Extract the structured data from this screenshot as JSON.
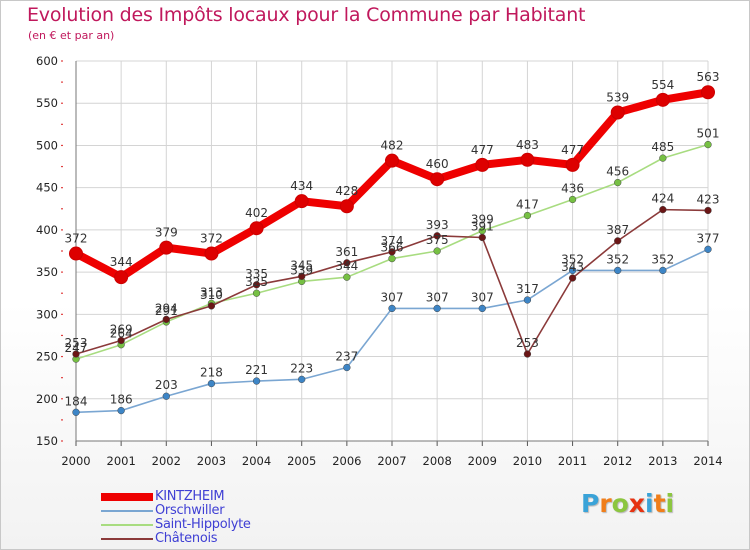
{
  "title": "Evolution des Impôts locaux pour la Commune par Habitant",
  "subtitle": "(en € et par an)",
  "logo": {
    "letters": [
      "P",
      "r",
      "o",
      "x",
      "i",
      "t",
      "i"
    ],
    "colors": [
      "#3aa3d8",
      "#f07e1a",
      "#8cc63f",
      "#e63312",
      "#3aa3d8",
      "#f07e1a",
      "#8cc63f"
    ]
  },
  "chart_data": {
    "type": "line",
    "title": "Evolution des Impôts locaux pour la Commune par Habitant",
    "subtitle": "(en € et par an)",
    "xlabel": "",
    "ylabel": "",
    "ylim": [
      150,
      600
    ],
    "yticks": [
      150,
      200,
      250,
      300,
      350,
      400,
      450,
      500,
      550,
      600
    ],
    "x": [
      "2000",
      "2001",
      "2002",
      "2003",
      "2004",
      "2005",
      "2006",
      "2007",
      "2008",
      "2009",
      "2010",
      "2011",
      "2012",
      "2013",
      "2014"
    ],
    "grid": true,
    "legend_position": "bottom-left",
    "series": [
      {
        "name": "KINTZHEIM",
        "color": "#ee0000",
        "point_color": "#dd0000",
        "style": "thick",
        "values": [
          372,
          344,
          379,
          372,
          402,
          434,
          428,
          482,
          460,
          477,
          483,
          477,
          539,
          554,
          563
        ]
      },
      {
        "name": "Orschwiller",
        "color": "#7aa6d2",
        "point_color": "#3d85c6",
        "style": "thin",
        "values": [
          184,
          186,
          203,
          218,
          221,
          223,
          237,
          307,
          307,
          307,
          317,
          352,
          352,
          352,
          377
        ]
      },
      {
        "name": "Saint-Hippolyte",
        "color": "#a8dc80",
        "point_color": "#76c043",
        "style": "thin",
        "values": [
          247,
          264,
          291,
          313,
          325,
          339,
          344,
          366,
          375,
          399,
          417,
          436,
          456,
          485,
          501
        ]
      },
      {
        "name": "Châtenois",
        "color": "#8b3a3a",
        "point_color": "#6b1616",
        "style": "thin",
        "values": [
          253,
          269,
          294,
          310,
          335,
          345,
          361,
          374,
          393,
          391,
          253,
          343,
          387,
          424,
          423
        ]
      }
    ]
  }
}
